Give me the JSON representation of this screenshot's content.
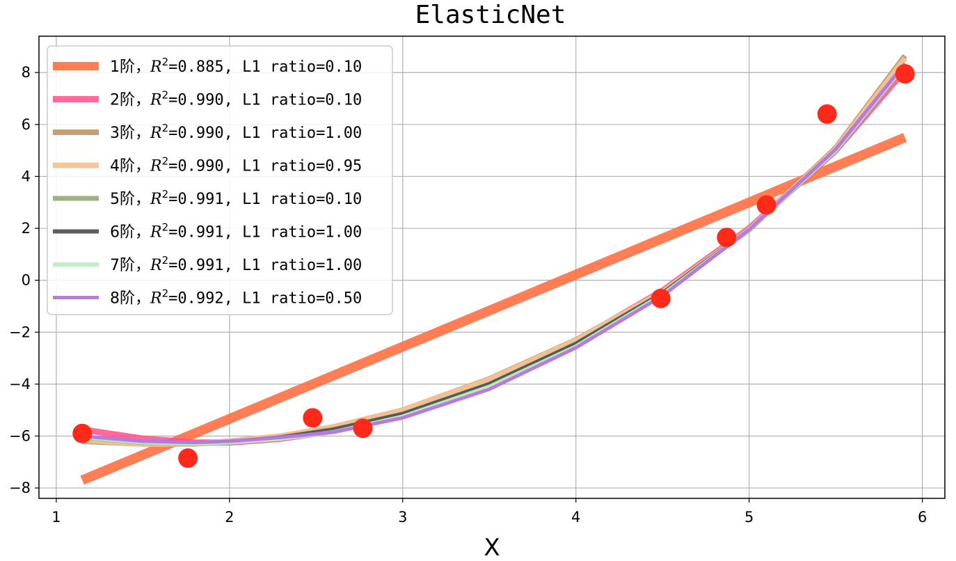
{
  "chart_data": {
    "type": "line",
    "title": "ElasticNet",
    "xlabel": "X",
    "ylabel": "",
    "xlim": [
      0.9,
      6.13
    ],
    "ylim": [
      -8.4,
      9.4
    ],
    "x_ticks": [
      1,
      2,
      3,
      4,
      5,
      6
    ],
    "y_ticks": [
      -8,
      -6,
      -4,
      -2,
      0,
      2,
      4,
      6,
      8
    ],
    "grid": true,
    "legend_position": "top-left",
    "scatter": {
      "color": "#ff2a1a",
      "x": [
        1.15,
        1.76,
        2.48,
        2.77,
        4.49,
        4.87,
        5.1,
        5.45,
        5.9
      ],
      "y": [
        -5.9,
        -6.85,
        -5.3,
        -5.7,
        -0.7,
        1.65,
        2.9,
        6.4,
        7.95
      ]
    },
    "series": [
      {
        "name": "1阶",
        "r2_text": "=0.885, L1 ratio=0.10",
        "color": "#ff7043",
        "line_width": 14,
        "opacity": 0.9,
        "x": [
          1.15,
          5.9
        ],
        "y": [
          -7.7,
          5.5
        ]
      },
      {
        "name": "2阶",
        "r2_text": "=0.990, L1 ratio=0.10",
        "color": "#ff4f8b",
        "line_width": 9,
        "opacity": 0.85,
        "x": [
          1.15,
          1.5,
          1.8,
          2.0,
          2.3,
          2.6,
          3.0,
          3.5,
          4.0,
          4.5,
          5.0,
          5.5,
          5.9
        ],
        "y": [
          -5.75,
          -6.1,
          -6.25,
          -6.25,
          -6.1,
          -5.8,
          -5.15,
          -3.95,
          -2.35,
          -0.4,
          2.0,
          5.0,
          8.1
        ]
      },
      {
        "name": "3阶",
        "r2_text": "=0.990, L1 ratio=1.00",
        "color": "#c49a6c",
        "line_width": 8,
        "opacity": 0.95,
        "x": [
          1.15,
          1.5,
          1.8,
          2.0,
          2.3,
          2.6,
          3.0,
          3.5,
          4.0,
          4.5,
          5.0,
          5.5,
          5.9
        ],
        "y": [
          -6.2,
          -6.3,
          -6.3,
          -6.2,
          -6.0,
          -5.65,
          -5.0,
          -3.8,
          -2.3,
          -0.45,
          1.95,
          5.1,
          8.65
        ]
      },
      {
        "name": "4阶",
        "r2_text": "=0.990, L1 ratio=0.95",
        "color": "#f5c297",
        "line_width": 8,
        "opacity": 0.95,
        "x": [
          1.15,
          1.5,
          1.8,
          2.0,
          2.3,
          2.6,
          3.0,
          3.5,
          4.0,
          4.5,
          5.0,
          5.5,
          5.9
        ],
        "y": [
          -6.15,
          -6.3,
          -6.3,
          -6.2,
          -6.0,
          -5.65,
          -5.0,
          -3.82,
          -2.32,
          -0.45,
          1.95,
          5.05,
          8.55
        ]
      },
      {
        "name": "5阶",
        "r2_text": "=0.991, L1 ratio=0.10",
        "color": "#9aae78",
        "line_width": 7,
        "opacity": 0.95,
        "x": [
          1.15,
          1.5,
          1.8,
          2.0,
          2.3,
          2.6,
          3.0,
          3.5,
          4.0,
          4.5,
          5.0,
          5.5,
          5.9
        ],
        "y": [
          -6.05,
          -6.25,
          -6.3,
          -6.25,
          -6.05,
          -5.75,
          -5.15,
          -4.0,
          -2.45,
          -0.5,
          1.95,
          5.0,
          8.3
        ]
      },
      {
        "name": "6阶",
        "r2_text": "=0.991, L1 ratio=1.00",
        "color": "#555555",
        "line_width": 6,
        "opacity": 0.95,
        "x": [
          1.15,
          1.5,
          1.8,
          2.0,
          2.3,
          2.6,
          3.0,
          3.5,
          4.0,
          4.5,
          5.0,
          5.5,
          5.9
        ],
        "y": [
          -6.05,
          -6.25,
          -6.3,
          -6.25,
          -6.05,
          -5.75,
          -5.15,
          -4.0,
          -2.45,
          -0.5,
          1.95,
          5.0,
          8.3
        ]
      },
      {
        "name": "7阶",
        "r2_text": "=0.991, L1 ratio=1.00",
        "color": "#b9f0c2",
        "line_width": 6,
        "opacity": 0.95,
        "x": [
          1.15,
          1.5,
          1.8,
          2.0,
          2.3,
          2.6,
          3.0,
          3.5,
          4.0,
          4.5,
          5.0,
          5.5,
          5.9
        ],
        "y": [
          -6.05,
          -6.25,
          -6.3,
          -6.25,
          -6.1,
          -5.85,
          -5.25,
          -4.1,
          -2.55,
          -0.55,
          1.95,
          5.0,
          8.3
        ]
      },
      {
        "name": "8阶",
        "r2_text": "=0.992, L1 ratio=0.50",
        "color": "#b972e0",
        "line_width": 5,
        "opacity": 0.95,
        "x": [
          1.15,
          1.5,
          1.8,
          2.0,
          2.3,
          2.6,
          3.0,
          3.5,
          4.0,
          4.5,
          5.0,
          5.5,
          5.9
        ],
        "y": [
          -6.0,
          -6.2,
          -6.25,
          -6.2,
          -6.05,
          -5.85,
          -5.3,
          -4.2,
          -2.6,
          -0.6,
          1.95,
          5.05,
          8.35
        ]
      }
    ]
  }
}
